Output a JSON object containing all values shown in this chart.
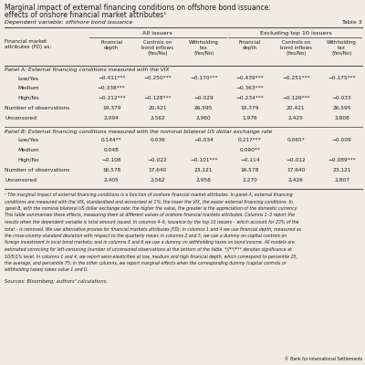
{
  "title_line1": "Marginal impact of external financing conditions on offshore bond issuance:",
  "title_line2": "effects of onshore financial market attributes¹",
  "dependent_var": "Dependent variable: offshore bond issuance",
  "table_number": "Table 3",
  "col_headers": [
    "Financial\ndepth",
    "Controls on\nbond inflows\n(Yes/No)",
    "Withholding\ntax\n(Yes/No)",
    "Financial\ndepth",
    "Controls on\nbond inflows\n(Yes/No)",
    "Withholding\ntax\n(Yes/No)"
  ],
  "row_header_col": "Financial market\nattributes (FD) as:",
  "panel_a_title": "Panel A: External financing conditions measured with the VIX",
  "panel_a_rows": [
    {
      "label": "Low/Yes",
      "vals": [
        "−0.411***",
        "−0.250***",
        "−0.170***",
        "−0.439***",
        "−0.251***",
        "−0.175***"
      ]
    },
    {
      "label": "Medium",
      "vals": [
        "−0.338***",
        "",
        "",
        "−0.363***",
        "",
        ""
      ]
    },
    {
      "label": "High/No",
      "vals": [
        "−0.212***",
        "−0.128***",
        "−0.029",
        "−0.234***",
        "−0.126***",
        "−0.033"
      ]
    },
    {
      "label": "Number of observations",
      "vals": [
        "19,379",
        "20,421",
        "26,595",
        "19,379",
        "20,421",
        "26,595"
      ]
    },
    {
      "label": "Uncensored",
      "vals": [
        "2,094",
        "2,562",
        "2,960",
        "1,976",
        "2,425",
        "2,808"
      ]
    }
  ],
  "panel_b_title": "Panel B: External financing conditions measured with the nominal bilateral US dollar exchange rate",
  "panel_b_rows": [
    {
      "label": "Low/Yes",
      "vals": [
        "0.144**",
        "0.036",
        "−0.034",
        "0.217***",
        "0.065*",
        "−0.009"
      ]
    },
    {
      "label": "Medium",
      "vals": [
        "0.048",
        "",
        "",
        "0.090**",
        "",
        ""
      ]
    },
    {
      "label": "High/No",
      "vals": [
        "−0.108",
        "−0.022",
        "−0.101***",
        "−0.114",
        "−0.012",
        "−0.089***"
      ]
    },
    {
      "label": "Number of observations",
      "vals": [
        "16,578",
        "17,640",
        "23,121",
        "16,578",
        "17,640",
        "23,121"
      ]
    },
    {
      "label": "Uncensored",
      "vals": [
        "2,405",
        "2,562",
        "2,958",
        "2,270",
        "2,426",
        "2,807"
      ]
    }
  ],
  "footnote_lines": [
    "¹ The marginal impact of external financing conditions is a function of onshore financial market attributes. In panel A, external financing",
    "conditions are measured with the VIX, standardised and winsorised at 1%; the lower the VIX, the easier external financing conditions. In",
    "panel B, with the nominal bilateral US dollar exchange rate: the higher the value, the greater is the appreciation of the domestic currency.",
    "This table summarises these effects, measuring them at different values of onshore financial markets attributes. Columns 1–3 report the",
    "results when the dependent variable is total amount issued. In columns 4–6, issuance by the top 10 issuers – which account for 23% of the",
    "total – is removed. We use alternative proxies for financial markets attributes (FD): in columns 1 and 4 we use financial depth, measured as",
    "the cross-country standard deviation with respect to the quarterly mean; in columns 2 and 5, we use a dummy on capital controls on",
    "foreign investment in local bond markets; and in columns 3 and 6 we use a dummy on withholding taxes on bond income. All models are",
    "estimated correcting for left-censoring (number of uncensored observations at the bottom of the table. *//**/*** denotes significance at",
    "10/5/1% level. In columns 1 and 4, we report semi-elasticities at low, medium and high financial depth, which correspond to percentile 25,",
    "the average, and percentile 75; in the other columns, we report marginal effects when the corresponding dummy (capital controls or",
    "withholding taxes) takes value 1 and 0."
  ],
  "source": "Sources: Bloomberg; authors’ calculations.",
  "bis_credit": "© Bank for International Settlements",
  "bg_color": "#f0ece4",
  "text_color": "#1a1a1a",
  "line_color": "#555555"
}
